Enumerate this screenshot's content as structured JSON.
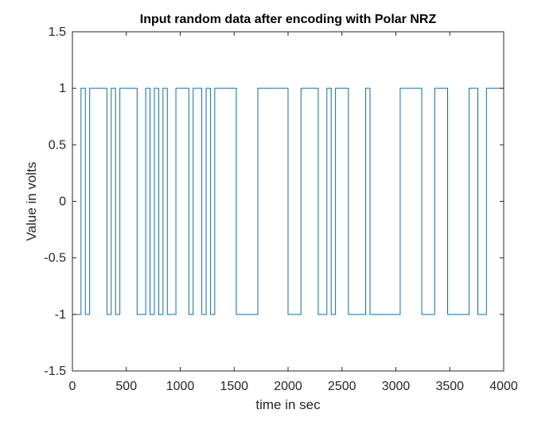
{
  "chart_data": {
    "type": "line",
    "step": true,
    "title": "Input random data after encoding with Polar NRZ",
    "xlabel": "time in sec",
    "ylabel": "Value in volts",
    "xlim": [
      0,
      4000
    ],
    "ylim": [
      -1.5,
      1.5
    ],
    "xticks": [
      0,
      500,
      1000,
      1500,
      2000,
      2500,
      3000,
      3500,
      4000
    ],
    "yticks": [
      -1.5,
      -1,
      -0.5,
      0,
      0.5,
      1,
      1.5
    ],
    "xtick_labels": [
      "0",
      "500",
      "1000",
      "1500",
      "2000",
      "2500",
      "3000",
      "3500",
      "4000"
    ],
    "ytick_labels": [
      "-1.5",
      "-1",
      "-0.5",
      "0",
      "0.5",
      "1",
      "1.5"
    ],
    "grid": false,
    "line_color": "#0072BD",
    "bit_duration": 40,
    "series": [
      {
        "values": [
          -1,
          -1,
          1,
          -1,
          1,
          1,
          1,
          1,
          -1,
          1,
          -1,
          1,
          1,
          1,
          1,
          -1,
          -1,
          1,
          -1,
          1,
          -1,
          1,
          -1,
          -1,
          1,
          1,
          1,
          -1,
          1,
          1,
          -1,
          1,
          -1,
          1,
          1,
          1,
          1,
          1,
          -1,
          -1,
          -1,
          -1,
          -1,
          1,
          1,
          1,
          1,
          1,
          1,
          1,
          -1,
          -1,
          -1,
          1,
          1,
          1,
          1,
          -1,
          -1,
          1,
          -1,
          1,
          1,
          1,
          -1,
          -1,
          -1,
          -1,
          1,
          -1,
          -1,
          -1,
          -1,
          -1,
          -1,
          -1,
          1,
          1,
          1,
          1,
          1,
          -1,
          -1,
          -1,
          1,
          1,
          1,
          -1,
          -1,
          -1,
          -1,
          -1,
          1,
          1,
          -1,
          -1,
          1,
          1,
          1,
          1
        ]
      }
    ]
  }
}
